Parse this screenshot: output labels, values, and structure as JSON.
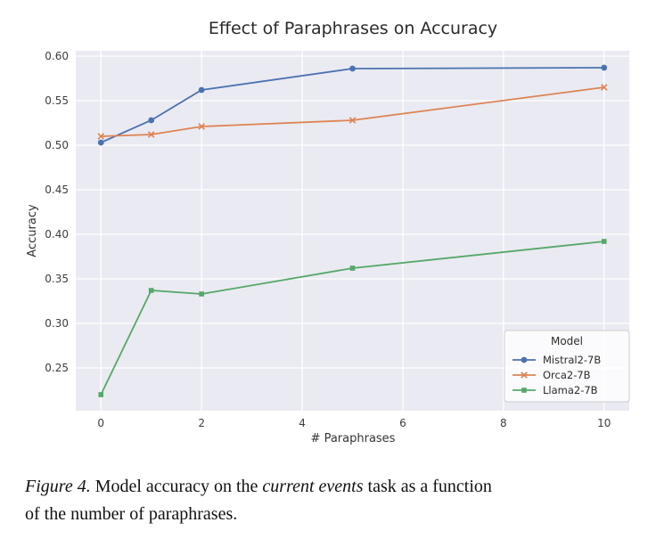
{
  "chart_data": {
    "type": "line",
    "title": "Effect of Paraphrases on Accuracy",
    "xlabel": "# Paraphrases",
    "ylabel": "Accuracy",
    "x": [
      0,
      1,
      2,
      5,
      10
    ],
    "series": [
      {
        "name": "Mistral2-7B",
        "color": "#4C72B0",
        "marker": "circle",
        "values": [
          0.503,
          0.528,
          0.562,
          0.586,
          0.587
        ]
      },
      {
        "name": "Orca2-7B",
        "color": "#DD8452",
        "marker": "x",
        "values": [
          0.51,
          0.512,
          0.521,
          0.528,
          0.565
        ]
      },
      {
        "name": "Llama2-7B",
        "color": "#55A868",
        "marker": "square",
        "values": [
          0.22,
          0.337,
          0.333,
          0.362,
          0.392
        ]
      }
    ],
    "xticks": [
      0,
      2,
      4,
      6,
      8,
      10
    ],
    "yticks": [
      0.25,
      0.3,
      0.35,
      0.4,
      0.45,
      0.5,
      0.55,
      0.6
    ],
    "xlim": [
      -0.5,
      10.5
    ],
    "ylim": [
      0.202,
      0.606
    ],
    "grid": true,
    "legend": {
      "title": "Model",
      "position": "lower right"
    },
    "plot_bg": "#eaeaf2",
    "grid_color": "#ffffff"
  },
  "caption": {
    "figure_label": "Figure 4.",
    "line1_a": " Model accuracy on the ",
    "line1_em": "current events",
    "line1_b": " task as a function",
    "line2": "of the number of paraphrases."
  }
}
